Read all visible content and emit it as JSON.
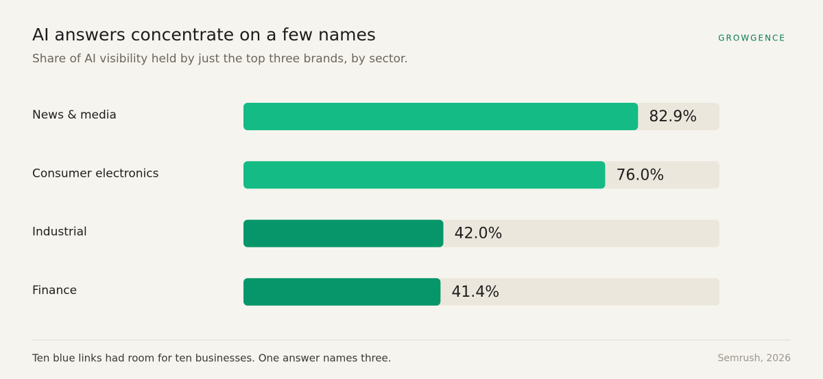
{
  "chart_data": {
    "type": "bar",
    "orientation": "horizontal",
    "title": "AI answers concentrate on a few names",
    "subtitle": "Share of AI visibility held by just the top three brands, by sector.",
    "brand": "GROWGENCE",
    "note": "Ten blue links had room for ten businesses. One answer names three.",
    "source": "Semrush, 2026",
    "categories": [
      "News & media",
      "Consumer electronics",
      "Industrial",
      "Finance"
    ],
    "values": [
      82.9,
      76.0,
      42.0,
      41.4
    ],
    "value_labels": [
      "82.9%",
      "76.0%",
      "42.0%",
      "41.4%"
    ],
    "colors": [
      "#14bb85",
      "#14bb85",
      "#07966a",
      "#07966a"
    ],
    "track_color": "#ece7dd",
    "xlim": [
      0,
      100
    ]
  }
}
